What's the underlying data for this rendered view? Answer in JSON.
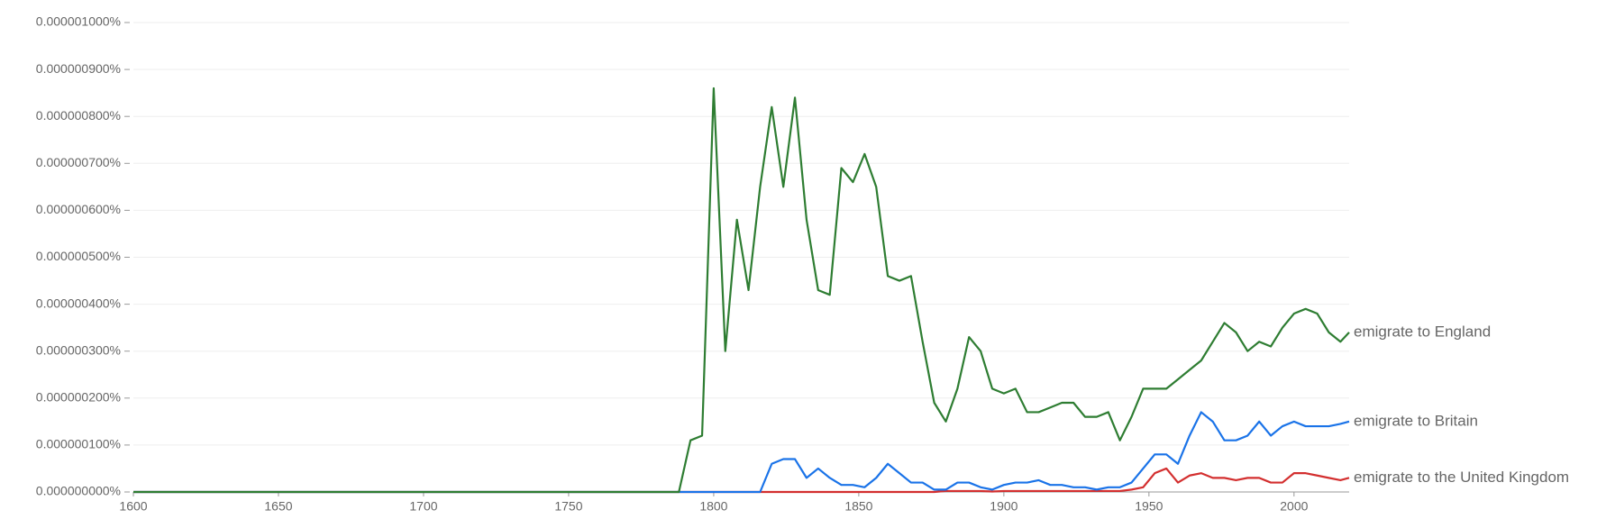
{
  "chart_data": {
    "type": "line",
    "x": [
      1600,
      1700,
      1780,
      1788,
      1792,
      1796,
      1800,
      1804,
      1808,
      1812,
      1816,
      1820,
      1824,
      1828,
      1832,
      1836,
      1840,
      1844,
      1848,
      1852,
      1856,
      1860,
      1864,
      1868,
      1872,
      1876,
      1880,
      1884,
      1888,
      1892,
      1896,
      1900,
      1904,
      1908,
      1912,
      1916,
      1920,
      1924,
      1928,
      1932,
      1936,
      1940,
      1944,
      1948,
      1952,
      1956,
      1960,
      1964,
      1968,
      1972,
      1976,
      1980,
      1984,
      1988,
      1992,
      1996,
      2000,
      2004,
      2008,
      2012,
      2016,
      2019
    ],
    "series": [
      {
        "name": "emigrate to England",
        "color": "#2e7d32",
        "values": [
          0,
          0,
          0,
          0,
          1.1e-07,
          1.2e-07,
          8.6e-07,
          3e-07,
          5.8e-07,
          4.3e-07,
          6.5e-07,
          8.2e-07,
          6.5e-07,
          8.4e-07,
          5.8e-07,
          4.3e-07,
          4.2e-07,
          6.9e-07,
          6.6e-07,
          7.2e-07,
          6.5e-07,
          4.6e-07,
          4.5e-07,
          4.6e-07,
          3.2e-07,
          1.9e-07,
          1.5e-07,
          2.2e-07,
          3.3e-07,
          3e-07,
          2.2e-07,
          2.1e-07,
          2.2e-07,
          1.7e-07,
          1.7e-07,
          1.8e-07,
          1.9e-07,
          1.9e-07,
          1.6e-07,
          1.6e-07,
          1.7e-07,
          1.1e-07,
          1.6e-07,
          2.2e-07,
          2.2e-07,
          2.2e-07,
          2.4e-07,
          2.6e-07,
          2.8e-07,
          3.2e-07,
          3.6e-07,
          3.4e-07,
          3e-07,
          3.2e-07,
          3.1e-07,
          3.5e-07,
          3.8e-07,
          3.9e-07,
          3.8e-07,
          3.4e-07,
          3.2e-07,
          3.4e-07
        ]
      },
      {
        "name": "emigrate to Britain",
        "color": "#1a73e8",
        "values": [
          0,
          0,
          0,
          0,
          0,
          0,
          0,
          0,
          0,
          0,
          0,
          6e-08,
          7e-08,
          7e-08,
          3e-08,
          5e-08,
          3e-08,
          1.5e-08,
          1.5e-08,
          1e-08,
          3e-08,
          6e-08,
          4e-08,
          2e-08,
          2e-08,
          5e-09,
          5e-09,
          2e-08,
          2e-08,
          1e-08,
          5e-09,
          1.5e-08,
          2e-08,
          2e-08,
          2.5e-08,
          1.5e-08,
          1.5e-08,
          1e-08,
          1e-08,
          5e-09,
          1e-08,
          1e-08,
          2e-08,
          5e-08,
          8e-08,
          8e-08,
          6e-08,
          1.2e-07,
          1.7e-07,
          1.5e-07,
          1.1e-07,
          1.1e-07,
          1.2e-07,
          1.5e-07,
          1.2e-07,
          1.4e-07,
          1.5e-07,
          1.4e-07,
          1.4e-07,
          1.4e-07,
          1.45e-07,
          1.5e-07
        ]
      },
      {
        "name": "emigrate to the United Kingdom",
        "color": "#d32f2f",
        "values": [
          0,
          0,
          0,
          0,
          0,
          0,
          0,
          0,
          0,
          0,
          0,
          0,
          0,
          0,
          0,
          0,
          0,
          0,
          0,
          0,
          0,
          0,
          0,
          0,
          0,
          0,
          2e-09,
          2e-09,
          2e-09,
          2e-09,
          1e-09,
          2e-09,
          2e-09,
          2e-09,
          2e-09,
          2e-09,
          2e-09,
          2e-09,
          2e-09,
          2e-09,
          2e-09,
          2e-09,
          5e-09,
          1e-08,
          4e-08,
          5e-08,
          2e-08,
          3.5e-08,
          4e-08,
          3e-08,
          3e-08,
          2.5e-08,
          3e-08,
          3e-08,
          2e-08,
          2e-08,
          4e-08,
          4e-08,
          3.5e-08,
          3e-08,
          2.5e-08,
          3e-08
        ]
      }
    ],
    "xlim": [
      1600,
      2019
    ],
    "xticks": [
      1600,
      1650,
      1700,
      1750,
      1800,
      1850,
      1900,
      1950,
      2000
    ],
    "ylim": [
      0,
      1e-06
    ],
    "yticks": [
      {
        "value": 0,
        "label": "0.000000000%"
      },
      {
        "value": 1e-07,
        "label": "0.000000100%"
      },
      {
        "value": 2e-07,
        "label": "0.000000200%"
      },
      {
        "value": 3e-07,
        "label": "0.000000300%"
      },
      {
        "value": 4e-07,
        "label": "0.000000400%"
      },
      {
        "value": 5e-07,
        "label": "0.000000500%"
      },
      {
        "value": 6e-07,
        "label": "0.000000600%"
      },
      {
        "value": 7e-07,
        "label": "0.000000700%"
      },
      {
        "value": 8e-07,
        "label": "0.000000800%"
      },
      {
        "value": 9e-07,
        "label": "0.000000900%"
      },
      {
        "value": 1e-06,
        "label": "0.000001000%"
      }
    ],
    "grid": true
  }
}
